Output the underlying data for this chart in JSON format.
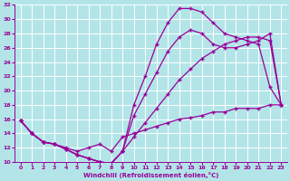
{
  "xlabel": "Windchill (Refroidissement éolien,°C)",
  "bg_color": "#b3e5e8",
  "line_color": "#990099",
  "grid_color": "#ffffff",
  "xlim": [
    -0.5,
    23.5
  ],
  "ylim": [
    10,
    32
  ],
  "xticks": [
    0,
    1,
    2,
    3,
    4,
    5,
    6,
    7,
    8,
    9,
    10,
    11,
    12,
    13,
    14,
    15,
    16,
    17,
    18,
    19,
    20,
    21,
    22,
    23
  ],
  "yticks": [
    10,
    12,
    14,
    16,
    18,
    20,
    22,
    24,
    26,
    28,
    30,
    32
  ],
  "curve1_x": [
    0,
    1,
    2,
    3,
    4,
    5,
    6,
    7,
    8,
    9,
    10,
    11,
    12,
    13,
    14,
    15,
    16,
    17,
    18,
    19,
    20,
    21,
    22,
    23
  ],
  "curve1_y": [
    15.8,
    14.0,
    12.8,
    12.5,
    11.8,
    11.0,
    10.5,
    10.0,
    9.8,
    11.5,
    18.0,
    22.0,
    26.5,
    29.5,
    31.5,
    31.5,
    31.0,
    29.5,
    28.0,
    27.5,
    27.0,
    26.5,
    20.5,
    18.0
  ],
  "curve2_x": [
    0,
    1,
    2,
    3,
    4,
    5,
    6,
    7,
    8,
    9,
    10,
    11,
    12,
    13,
    14,
    15,
    16,
    17,
    18,
    19,
    20,
    21,
    22,
    23
  ],
  "curve2_y": [
    15.8,
    14.0,
    12.8,
    12.5,
    11.8,
    11.0,
    10.5,
    10.0,
    9.8,
    11.5,
    16.5,
    19.5,
    22.5,
    25.5,
    27.5,
    28.5,
    28.0,
    26.5,
    26.0,
    26.0,
    26.5,
    27.0,
    28.0,
    18.0
  ],
  "curve3_x": [
    0,
    1,
    2,
    3,
    4,
    5,
    6,
    7,
    8,
    9,
    10,
    11,
    12,
    13,
    14,
    15,
    16,
    17,
    18,
    19,
    20,
    21,
    22,
    23
  ],
  "curve3_y": [
    15.8,
    14.0,
    12.8,
    12.5,
    11.8,
    11.0,
    10.5,
    10.0,
    9.8,
    11.5,
    13.5,
    15.5,
    17.5,
    19.5,
    21.5,
    23.0,
    24.5,
    25.5,
    26.5,
    27.0,
    27.5,
    27.5,
    27.0,
    18.0
  ],
  "curve4_x": [
    0,
    1,
    2,
    3,
    4,
    5,
    6,
    7,
    8,
    9,
    10,
    11,
    12,
    13,
    14,
    15,
    16,
    17,
    18,
    19,
    20,
    21,
    22,
    23
  ],
  "curve4_y": [
    15.8,
    14.0,
    12.8,
    12.5,
    12.0,
    11.5,
    12.0,
    12.5,
    11.5,
    13.5,
    14.0,
    14.5,
    15.0,
    15.5,
    16.0,
    16.2,
    16.5,
    17.0,
    17.0,
    17.5,
    17.5,
    17.5,
    18.0,
    18.0
  ]
}
